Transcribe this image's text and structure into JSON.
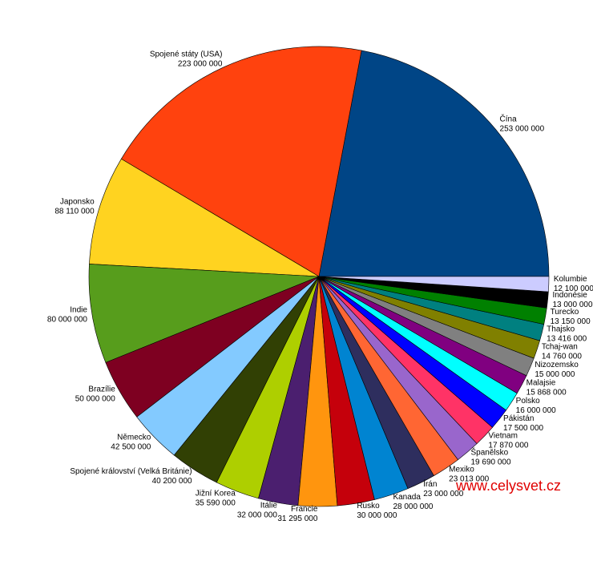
{
  "chart_data": {
    "type": "pie",
    "categories": [
      "Čína",
      "Spojené státy (USA)",
      "Japonsko",
      "Indie",
      "Brazílie",
      "Německo",
      "Spojené království (Velká Británie)",
      "Jižní Korea",
      "Itálie",
      "Francie",
      "Rusko",
      "Kanada",
      "Írán",
      "Mexiko",
      "Španělsko",
      "Vietnam",
      "Pákistán",
      "Polsko",
      "Malajsie",
      "Nizozemsko",
      "Tchaj-wan",
      "Thajsko",
      "Turecko",
      "Indonésie",
      "Kolumbie"
    ],
    "values": [
      253000000,
      223000000,
      88110000,
      80000000,
      50000000,
      42500000,
      40200000,
      35590000,
      32000000,
      31295000,
      30000000,
      28000000,
      23000000,
      23013000,
      19690000,
      17870000,
      17500000,
      16000000,
      15868000,
      15000000,
      14760000,
      13416000,
      13150000,
      13000000,
      12100000
    ],
    "value_labels": [
      "253 000 000",
      "223 000 000",
      "88 110 000",
      "80 000 000",
      "50 000 000",
      "42 500 000",
      "40 200 000",
      "35 590 000",
      "32 000 000",
      "31 295 000",
      "30 000 000",
      "28 000 000",
      "23 000 000",
      "23 013 000",
      "19 690 000",
      "17 870 000",
      "17 500 000",
      "16 000 000",
      "15 868 000",
      "15 000 000",
      "14 760 000",
      "13 416 000",
      "13 150 000",
      "13 000 000",
      "12 100 000"
    ],
    "colors": [
      "#004586",
      "#ff420e",
      "#ffd320",
      "#579d1c",
      "#7e0021",
      "#83caff",
      "#314004",
      "#aecf00",
      "#4b1f6f",
      "#ff950e",
      "#c5000b",
      "#0084d1",
      "#2e2e5e",
      "#ff6633",
      "#9966cc",
      "#ff3366",
      "#0000ff",
      "#00ffff",
      "#800080",
      "#808080",
      "#808000",
      "#008080",
      "#008000",
      "#000000",
      "#ccccff"
    ],
    "annotation": "www.celysvet.cz"
  }
}
